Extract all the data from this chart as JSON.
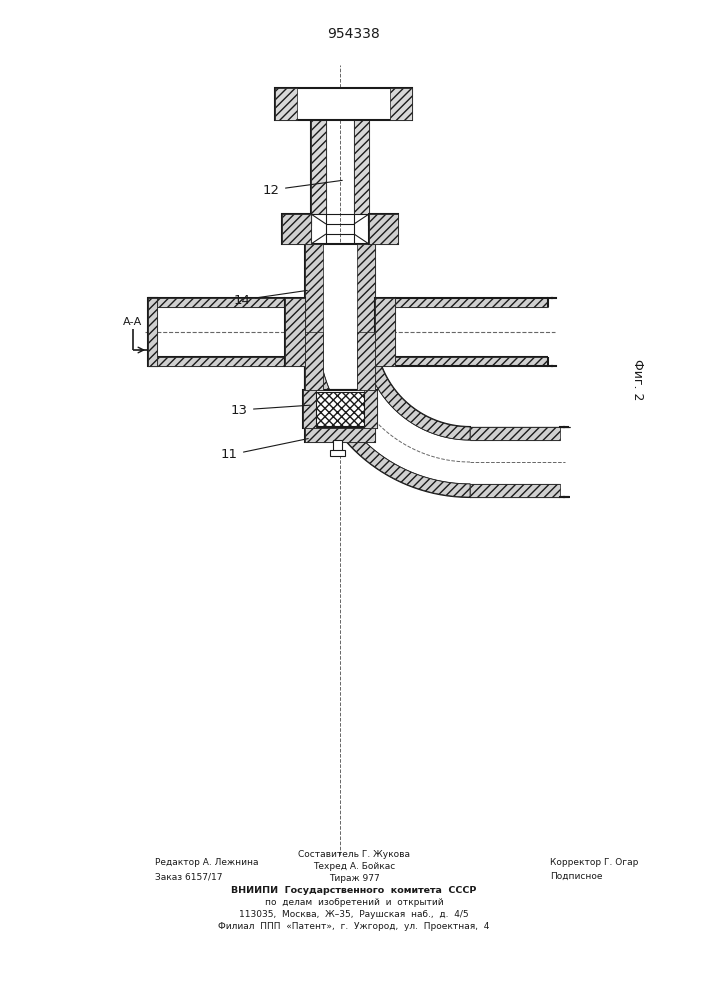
{
  "title": "954338",
  "fig_label": "Фиг. 2",
  "label_12": "12",
  "label_14": "14",
  "label_13": "13",
  "label_11": "11",
  "label_AA": "А-А",
  "footer_left1": "Редактор А. Лежнина",
  "footer_left2": "Заказ 6157/17",
  "footer_center1": "Составитель Г. Жукова",
  "footer_center2": "Техред А. Бойкас",
  "footer_center3": "Тираж 977",
  "footer_right1": "Корректор Г. Огар",
  "footer_right2": "Подписное",
  "footer_vn1": "ВНИИПИ  Государственного  комитета  СССР",
  "footer_vn2": "по  делам  изобретений  и  открытий",
  "footer_vn3": "113035,  Москва,  Ж–35,  Раушская  наб.,  д.  4/5",
  "footer_vn4": "Филиал  ППП  «Патент»,  г.  Ужгород,  ул.  Проектная,  4",
  "lc": "#1a1a1a",
  "lw_main": 1.5,
  "lw_thin": 0.8
}
